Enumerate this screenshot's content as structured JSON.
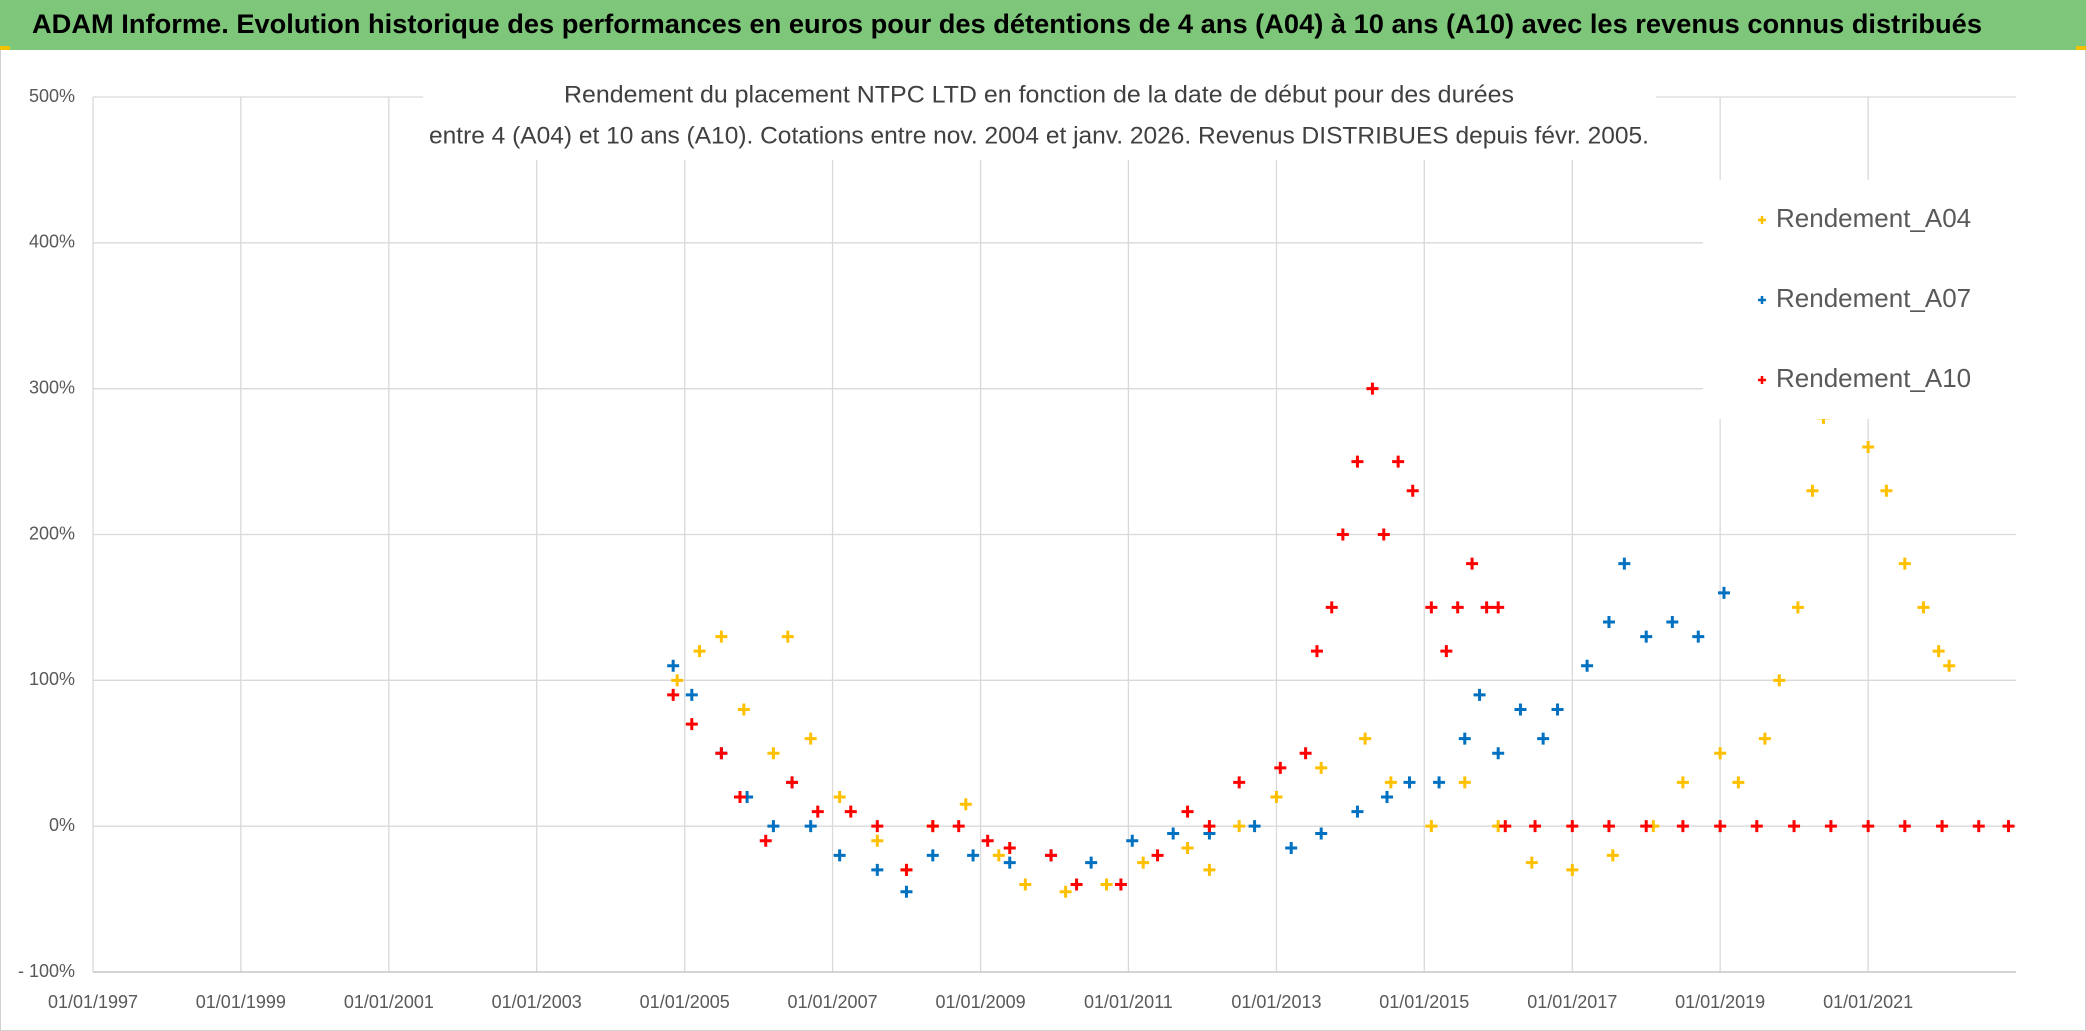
{
  "header": {
    "title": "ADAM Informe. Evolution historique des performances en euros pour des détentions de 4 ans (A04) à 10 ans (A10) avec les revenus connus distribués"
  },
  "chart_data": {
    "type": "scatter",
    "title": "Rendement du placement NTPC LTD en fonction de la date de début pour des durées",
    "subtitle": "entre 4 (A04) et 10 ans (A10). Cotations entre nov. 2004 et janv. 2026. Revenus DISTRIBUES depuis févr. 2005.",
    "xlim": [
      "01/01/1997",
      "01/01/2023"
    ],
    "xticks": [
      "01/01/1997",
      "01/01/1999",
      "01/01/2001",
      "01/01/2003",
      "01/01/2005",
      "01/01/2007",
      "01/01/2009",
      "01/01/2011",
      "01/01/2013",
      "01/01/2015",
      "01/01/2017",
      "01/01/2019",
      "01/01/2021"
    ],
    "ylim": [
      -100,
      500
    ],
    "yticks": [
      {
        "value": -100,
        "label": "- 100%"
      },
      {
        "value": 0,
        "label": "0%"
      },
      {
        "value": 100,
        "label": "100%"
      },
      {
        "value": 200,
        "label": "200%"
      },
      {
        "value": 300,
        "label": "300%"
      },
      {
        "value": 400,
        "label": "400%"
      },
      {
        "value": 500,
        "label": "500%"
      }
    ],
    "grid": true,
    "legend": "right",
    "series": [
      {
        "name": "Rendement_A04",
        "color": "#FFC000",
        "x": [
          "25/11/2004",
          "15/03/2005",
          "01/07/2005",
          "20/10/2005",
          "15/03/2006",
          "25/05/2006",
          "15/09/2006",
          "05/02/2007",
          "10/08/2007",
          "01/01/2008",
          "10/05/2008",
          "20/10/2008",
          "01/04/2009",
          "10/08/2009",
          "25/02/2010",
          "15/09/2010",
          "15/03/2011",
          "20/10/2011",
          "05/02/2012",
          "01/07/2012",
          "01/01/2013",
          "10/08/2013",
          "15/03/2014",
          "20/07/2014",
          "05/02/2015",
          "20/07/2015",
          "01/01/2016",
          "15/06/2016",
          "01/01/2017",
          "20/07/2017",
          "05/02/2018",
          "01/07/2018",
          "01/01/2019",
          "01/04/2019",
          "10/08/2019",
          "20/10/2019",
          "20/01/2020",
          "01/04/2020",
          "25/05/2020",
          "01/01/2021",
          "01/04/2021",
          "01/07/2021",
          "01/10/2021",
          "15/12/2021",
          "05/02/2022"
        ],
        "values": [
          100,
          120,
          130,
          80,
          50,
          130,
          60,
          20,
          -10,
          -30,
          0,
          15,
          -20,
          -40,
          -45,
          -40,
          -25,
          -15,
          -30,
          0,
          20,
          40,
          60,
          30,
          0,
          30,
          0,
          -25,
          -30,
          -20,
          0,
          30,
          50,
          30,
          60,
          100,
          150,
          230,
          280,
          260,
          230,
          180,
          150,
          120,
          110
        ]
      },
      {
        "name": "Rendement_A07",
        "color": "#0070C0",
        "x": [
          "05/11/2004",
          "05/02/2005",
          "01/07/2005",
          "05/11/2005",
          "15/03/2006",
          "15/06/2006",
          "15/09/2006",
          "05/02/2007",
          "10/08/2007",
          "01/01/2008",
          "10/05/2008",
          "25/11/2008",
          "25/05/2009",
          "15/12/2009",
          "01/07/2010",
          "20/01/2011",
          "10/08/2011",
          "05/02/2012",
          "15/09/2012",
          "15/03/2013",
          "10/08/2013",
          "05/02/2014",
          "01/07/2014",
          "20/10/2014",
          "15/03/2015",
          "20/07/2015",
          "01/10/2015",
          "01/01/2016",
          "20/04/2016",
          "10/08/2016",
          "20/10/2016",
          "15/03/2017",
          "01/07/2017",
          "15/09/2017",
          "01/01/2018",
          "10/05/2018",
          "15/09/2018",
          "20/01/2019"
        ],
        "values": [
          110,
          90,
          50,
          20,
          0,
          30,
          0,
          -20,
          -30,
          -45,
          -20,
          -20,
          -25,
          -20,
          -25,
          -10,
          -5,
          -5,
          0,
          -15,
          -5,
          10,
          20,
          30,
          30,
          60,
          90,
          50,
          80,
          60,
          80,
          110,
          140,
          180,
          130,
          140,
          130,
          160
        ]
      },
      {
        "name": "Rendement_A10",
        "color": "#FF0000",
        "x": [
          "05/11/2004",
          "05/02/2005",
          "01/07/2005",
          "01/10/2005",
          "05/02/2006",
          "15/06/2006",
          "20/10/2006",
          "01/04/2007",
          "10/08/2007",
          "01/01/2008",
          "10/05/2008",
          "15/09/2008",
          "05/02/2009",
          "25/05/2009",
          "15/12/2009",
          "20/04/2010",
          "25/11/2010",
          "25/05/2011",
          "20/10/2011",
          "05/02/2012",
          "01/07/2012",
          "20/01/2013",
          "25/05/2013",
          "20/07/2013",
          "01/10/2013",
          "25/11/2013",
          "05/02/2014",
          "20/04/2014",
          "15/06/2014",
          "25/08/2014",
          "05/11/2014",
          "05/02/2015",
          "20/04/2015",
          "15/06/2015",
          "25/08/2015",
          "05/11/2015",
          "01/01/2016",
          "05/02/2016",
          "01/07/2016",
          "01/01/2017",
          "01/07/2017",
          "01/01/2018",
          "01/07/2018",
          "01/01/2019",
          "01/07/2019",
          "01/01/2020",
          "01/07/2020",
          "01/01/2021",
          "01/07/2021",
          "01/01/2022",
          "01/07/2022",
          "25/11/2022"
        ],
        "values": [
          90,
          70,
          50,
          20,
          -10,
          30,
          10,
          10,
          0,
          -30,
          0,
          0,
          -10,
          -15,
          -20,
          -40,
          -40,
          -20,
          10,
          0,
          30,
          40,
          50,
          120,
          150,
          200,
          250,
          300,
          200,
          250,
          230,
          150,
          120,
          150,
          180,
          150,
          150,
          0,
          0,
          0,
          0,
          0,
          0,
          0,
          0,
          0,
          0,
          0,
          0,
          0,
          0,
          0
        ]
      }
    ]
  }
}
